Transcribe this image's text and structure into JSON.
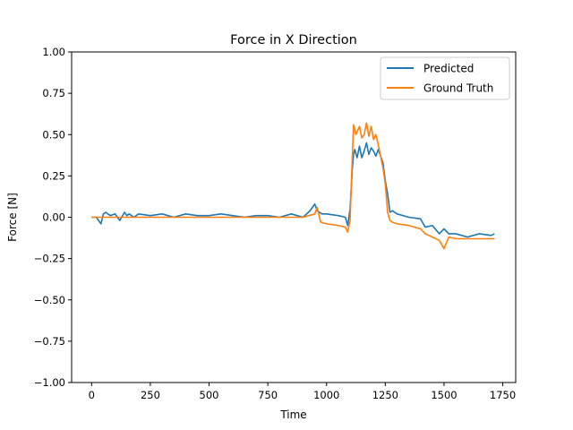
{
  "chart_data": {
    "type": "line",
    "title": "Force in X Direction",
    "xlabel": "Time",
    "ylabel": "Force [N]",
    "xlim": [
      -85,
      1805
    ],
    "ylim": [
      -1.0,
      1.0
    ],
    "xticks": [
      0,
      250,
      500,
      750,
      1000,
      1250,
      1500,
      1750
    ],
    "xtick_labels": [
      "0",
      "250",
      "500",
      "750",
      "1000",
      "1250",
      "1500",
      "1750"
    ],
    "yticks": [
      -1.0,
      -0.75,
      -0.5,
      -0.25,
      0.0,
      0.25,
      0.5,
      0.75,
      1.0
    ],
    "ytick_labels": [
      "−1.00",
      "−0.75",
      "−0.50",
      "−0.25",
      "0.00",
      "0.25",
      "0.50",
      "0.75",
      "1.00"
    ],
    "grid": false,
    "legend_position": "top-right",
    "series": [
      {
        "name": "Predicted",
        "color": "#1f77b4",
        "x": [
          0,
          20,
          40,
          50,
          60,
          80,
          100,
          120,
          140,
          150,
          160,
          180,
          200,
          250,
          300,
          350,
          400,
          450,
          500,
          550,
          600,
          650,
          700,
          750,
          800,
          850,
          900,
          930,
          950,
          960,
          980,
          1000,
          1050,
          1080,
          1090,
          1100,
          1110,
          1115,
          1120,
          1130,
          1140,
          1150,
          1160,
          1170,
          1180,
          1190,
          1200,
          1210,
          1220,
          1240,
          1250,
          1260,
          1270,
          1280,
          1300,
          1350,
          1400,
          1420,
          1450,
          1480,
          1500,
          1520,
          1550,
          1600,
          1650,
          1700,
          1715
        ],
        "y": [
          0.0,
          0.0,
          -0.04,
          0.02,
          0.03,
          0.01,
          0.02,
          -0.02,
          0.03,
          0.01,
          0.02,
          0.0,
          0.02,
          0.01,
          0.02,
          0.0,
          0.02,
          0.01,
          0.01,
          0.02,
          0.01,
          0.0,
          0.01,
          0.01,
          0.0,
          0.02,
          0.0,
          0.04,
          0.08,
          0.04,
          0.02,
          0.02,
          0.01,
          0.0,
          -0.05,
          0.05,
          0.3,
          0.38,
          0.41,
          0.36,
          0.43,
          0.36,
          0.4,
          0.45,
          0.38,
          0.42,
          0.4,
          0.37,
          0.41,
          0.33,
          0.22,
          0.14,
          0.03,
          0.04,
          0.02,
          0.0,
          -0.01,
          -0.06,
          -0.05,
          -0.1,
          -0.07,
          -0.1,
          -0.1,
          -0.12,
          -0.1,
          -0.11,
          -0.1
        ]
      },
      {
        "name": "Ground Truth",
        "color": "#ff7f0e",
        "x": [
          0,
          50,
          100,
          200,
          300,
          400,
          500,
          600,
          700,
          800,
          900,
          950,
          960,
          975,
          1000,
          1050,
          1080,
          1090,
          1100,
          1110,
          1115,
          1125,
          1140,
          1150,
          1160,
          1170,
          1180,
          1190,
          1200,
          1210,
          1220,
          1240,
          1250,
          1260,
          1270,
          1280,
          1300,
          1350,
          1400,
          1420,
          1450,
          1480,
          1500,
          1520,
          1550,
          1600,
          1650,
          1700,
          1715
        ],
        "y": [
          0.0,
          0.0,
          0.0,
          0.0,
          0.0,
          0.0,
          0.0,
          0.0,
          0.0,
          0.0,
          0.0,
          0.02,
          0.06,
          -0.03,
          -0.04,
          -0.05,
          -0.06,
          -0.09,
          -0.02,
          0.38,
          0.56,
          0.5,
          0.55,
          0.48,
          0.5,
          0.57,
          0.49,
          0.55,
          0.47,
          0.5,
          0.44,
          0.3,
          0.2,
          0.03,
          -0.02,
          -0.03,
          -0.04,
          -0.05,
          -0.07,
          -0.1,
          -0.12,
          -0.14,
          -0.19,
          -0.12,
          -0.13,
          -0.13,
          -0.13,
          -0.13,
          -0.13
        ]
      }
    ]
  }
}
